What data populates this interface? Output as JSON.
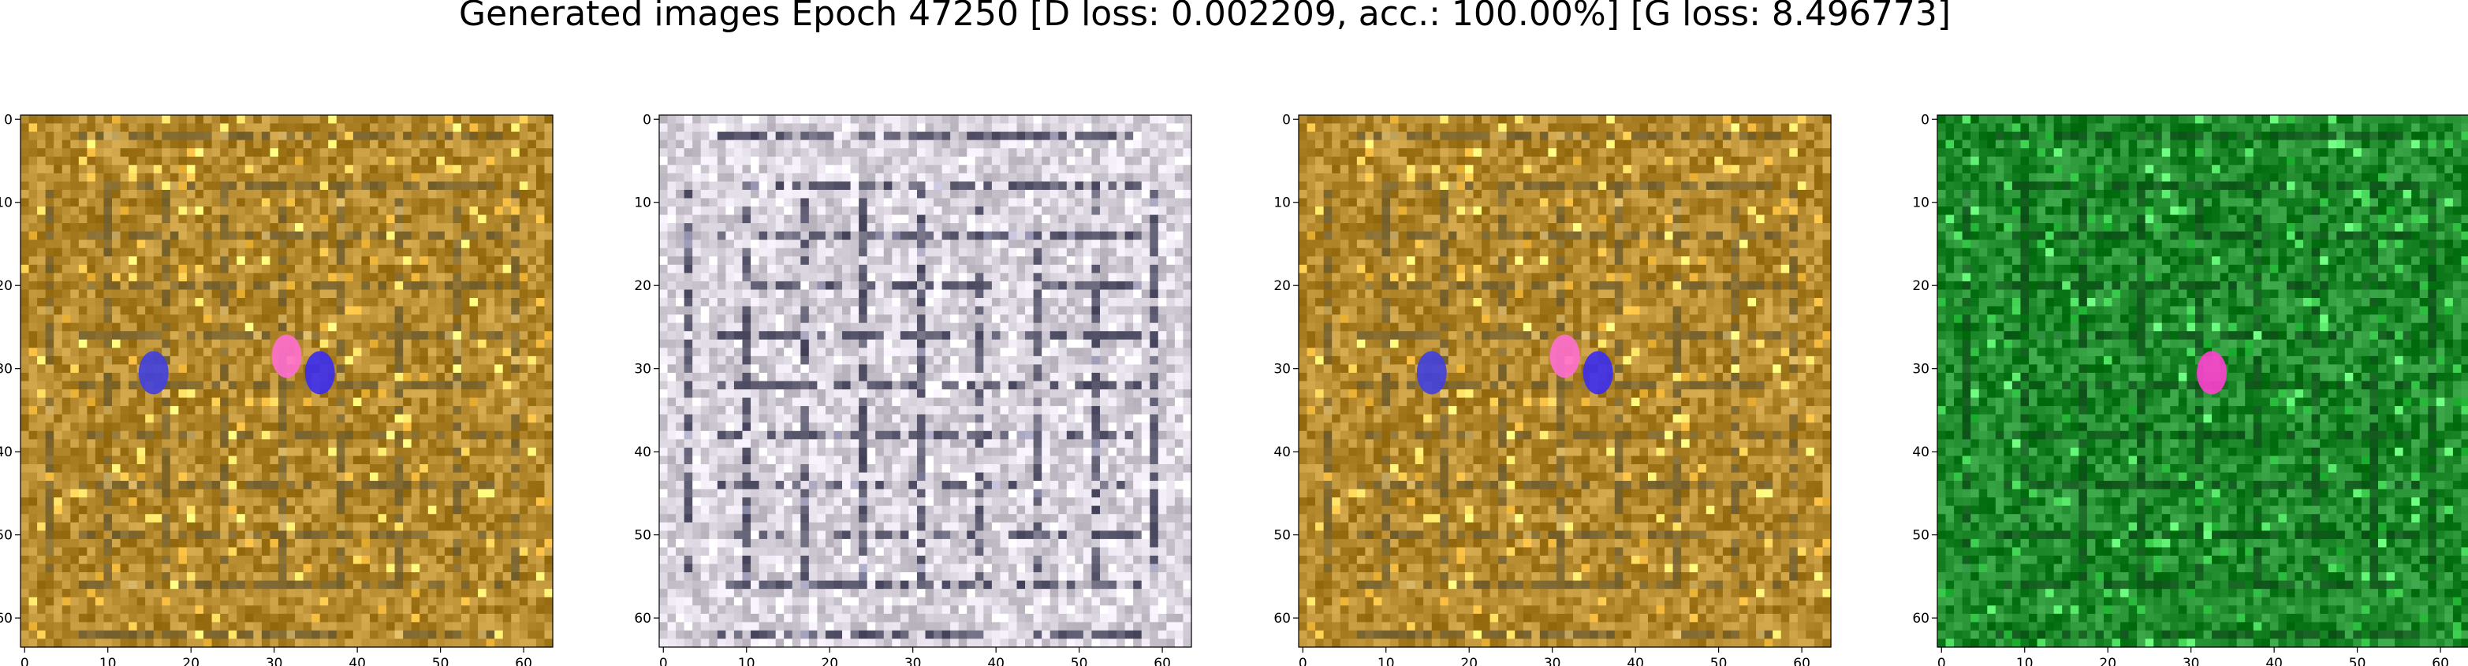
{
  "figure": {
    "title": "Generated images Epoch 47250 [D loss: 0.002209, acc.: 100.00%] [G loss: 8.496773]"
  },
  "panels": [
    {
      "id": "panel-1",
      "palette": "amber",
      "base": "#b58a2e",
      "accent": "#6a5a30",
      "blobs": [
        {
          "c": "#4040e0",
          "x": 16,
          "y": 31
        },
        {
          "c": "#3a2cf0",
          "x": 36,
          "y": 31
        },
        {
          "c": "#ff6fd0",
          "x": 32,
          "y": 29
        }
      ]
    },
    {
      "id": "panel-2",
      "palette": "lilac-grey",
      "base": "#d8d2dc",
      "accent": "#2a2a44",
      "blobs": []
    },
    {
      "id": "panel-3",
      "palette": "amber",
      "base": "#b58a2e",
      "accent": "#6a5a30",
      "blobs": [
        {
          "c": "#4040e0",
          "x": 16,
          "y": 31
        },
        {
          "c": "#3a2cf0",
          "x": 36,
          "y": 31
        },
        {
          "c": "#ff6fd0",
          "x": 32,
          "y": 29
        }
      ]
    },
    {
      "id": "panel-4",
      "palette": "green",
      "base": "#1f8a2c",
      "accent": "#0d4a18",
      "blobs": [
        {
          "c": "#ff40d0",
          "x": 33,
          "y": 31
        }
      ]
    }
  ],
  "axes": {
    "x_ticks": [
      "0",
      "10",
      "20",
      "30",
      "40",
      "50",
      "60"
    ],
    "y_ticks": [
      "0",
      "10",
      "20",
      "30",
      "40",
      "50",
      "60"
    ]
  }
}
